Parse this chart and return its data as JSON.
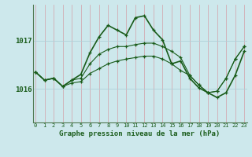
{
  "title": "Graphe pression niveau de la mer (hPa)",
  "background_color": "#cde8ec",
  "line_color": "#1a5c1a",
  "yticks": [
    1016,
    1017
  ],
  "ylim": [
    1015.3,
    1017.75
  ],
  "xlim": [
    -0.3,
    23.3
  ],
  "series": [
    [
      1016.35,
      1016.18,
      1016.22,
      1016.05,
      1016.18,
      1016.3,
      1016.75,
      1017.08,
      1017.32,
      1017.22,
      1017.12,
      1017.48,
      1017.52,
      1017.22,
      1017.02,
      1016.52,
      1016.58,
      1016.22,
      1016.02,
      1015.92,
      1015.82,
      1015.92,
      1016.28,
      1016.78
    ],
    [
      1016.35,
      1016.18,
      1016.22,
      1016.05,
      1016.18,
      1016.22,
      1016.52,
      1016.72,
      1016.82,
      1016.88,
      1016.88,
      1016.92,
      1016.95,
      1016.95,
      1016.88,
      1016.78,
      1016.65,
      1016.28,
      1016.08,
      1015.92,
      1015.95,
      1016.22,
      1016.62,
      1016.88
    ],
    [
      1016.35,
      1016.18,
      1016.22,
      1016.05,
      1016.12,
      1016.15,
      1016.32,
      1016.42,
      1016.52,
      1016.58,
      1016.62,
      1016.65,
      1016.68,
      1016.68,
      1016.62,
      1016.52,
      1016.38,
      1016.28,
      1016.08,
      1015.92,
      1015.95,
      1016.22,
      1016.62,
      1016.88
    ]
  ]
}
